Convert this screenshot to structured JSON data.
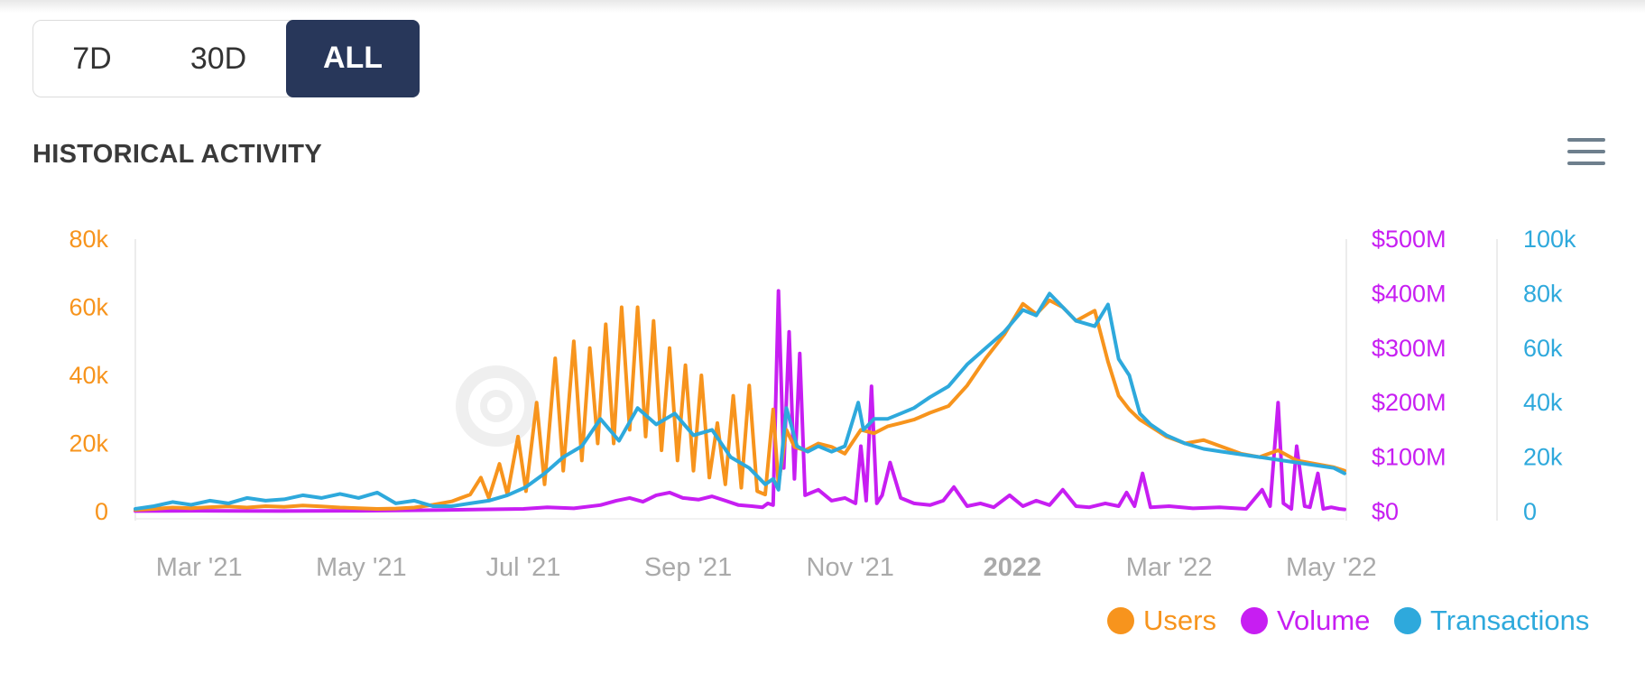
{
  "range_selector": {
    "options": [
      {
        "label": "7D",
        "active": false
      },
      {
        "label": "30D",
        "active": false
      },
      {
        "label": "ALL",
        "active": true
      }
    ]
  },
  "section": {
    "title": "HISTORICAL ACTIVITY",
    "menu_icon": "hamburger-menu-icon"
  },
  "colors": {
    "users": "#f7941d",
    "volume": "#c71ef2",
    "transactions": "#2ea9dc",
    "active_button": "#28375a",
    "axis_label_gray": "#aaaaaa"
  },
  "chart_data": {
    "type": "line",
    "xlabel": "",
    "ylabel": "",
    "x_ticks": [
      {
        "label": "Mar '21",
        "date": "2021-03-01",
        "bold": false
      },
      {
        "label": "May '21",
        "date": "2021-05-01",
        "bold": false
      },
      {
        "label": "Jul '21",
        "date": "2021-07-01",
        "bold": false
      },
      {
        "label": "Sep '21",
        "date": "2021-09-01",
        "bold": false
      },
      {
        "label": "Nov '21",
        "date": "2021-11-01",
        "bold": false
      },
      {
        "label": "2022",
        "date": "2022-01-01",
        "bold": true
      },
      {
        "label": "Mar '22",
        "date": "2022-03-01",
        "bold": false
      },
      {
        "label": "May '22",
        "date": "2022-05-01",
        "bold": false
      }
    ],
    "x_range": [
      "2021-02-05",
      "2022-05-06"
    ],
    "y_axes": [
      {
        "id": "users",
        "position": "left",
        "range": [
          0,
          80000
        ],
        "ticks": [
          "0",
          "20k",
          "40k",
          "60k",
          "80k"
        ],
        "color": "#f7941d"
      },
      {
        "id": "volume",
        "position": "right",
        "range": [
          0,
          500000000
        ],
        "ticks": [
          "$0",
          "$100M",
          "$200M",
          "$300M",
          "$400M",
          "$500M"
        ],
        "color": "#c71ef2"
      },
      {
        "id": "transactions",
        "position": "right",
        "range": [
          0,
          100000
        ],
        "ticks": [
          "0",
          "20k",
          "40k",
          "60k",
          "80k",
          "100k"
        ],
        "color": "#2ea9dc"
      }
    ],
    "grid": false,
    "legend_position": "bottom-right",
    "series": [
      {
        "name": "Users",
        "axis": "users",
        "color": "#f7941d",
        "x": [
          "2021-02-05",
          "2021-02-12",
          "2021-02-19",
          "2021-02-26",
          "2021-03-05",
          "2021-03-12",
          "2021-03-19",
          "2021-03-26",
          "2021-04-02",
          "2021-04-09",
          "2021-04-16",
          "2021-04-23",
          "2021-04-30",
          "2021-05-07",
          "2021-05-14",
          "2021-05-21",
          "2021-05-28",
          "2021-06-04",
          "2021-06-11",
          "2021-06-15",
          "2021-06-18",
          "2021-06-22",
          "2021-06-25",
          "2021-06-29",
          "2021-07-02",
          "2021-07-06",
          "2021-07-09",
          "2021-07-13",
          "2021-07-16",
          "2021-07-20",
          "2021-07-23",
          "2021-07-26",
          "2021-07-29",
          "2021-08-01",
          "2021-08-04",
          "2021-08-07",
          "2021-08-10",
          "2021-08-13",
          "2021-08-16",
          "2021-08-19",
          "2021-08-22",
          "2021-08-25",
          "2021-08-28",
          "2021-08-31",
          "2021-09-03",
          "2021-09-06",
          "2021-09-09",
          "2021-09-12",
          "2021-09-15",
          "2021-09-18",
          "2021-09-21",
          "2021-09-24",
          "2021-09-27",
          "2021-09-30",
          "2021-10-03",
          "2021-10-05",
          "2021-10-08",
          "2021-10-11",
          "2021-10-15",
          "2021-10-20",
          "2021-10-25",
          "2021-10-30",
          "2021-11-05",
          "2021-11-10",
          "2021-11-15",
          "2021-11-20",
          "2021-11-25",
          "2021-12-01",
          "2021-12-08",
          "2021-12-15",
          "2021-12-22",
          "2021-12-29",
          "2022-01-05",
          "2022-01-10",
          "2022-01-15",
          "2022-01-20",
          "2022-01-25",
          "2022-02-01",
          "2022-02-06",
          "2022-02-10",
          "2022-02-14",
          "2022-02-18",
          "2022-02-22",
          "2022-02-28",
          "2022-03-07",
          "2022-03-14",
          "2022-03-21",
          "2022-03-28",
          "2022-04-04",
          "2022-04-11",
          "2022-04-18",
          "2022-04-25",
          "2022-05-02",
          "2022-05-06"
        ],
        "values": [
          500,
          800,
          1200,
          1000,
          1300,
          1500,
          1200,
          1600,
          1400,
          1800,
          1500,
          1200,
          1000,
          800,
          900,
          1200,
          2000,
          3000,
          5000,
          10000,
          4000,
          14000,
          5000,
          22000,
          6000,
          32000,
          8000,
          45000,
          12000,
          50000,
          15000,
          48000,
          20000,
          55000,
          20000,
          60000,
          24000,
          60000,
          22000,
          56000,
          18000,
          48000,
          15000,
          43000,
          12000,
          40000,
          10000,
          26000,
          8000,
          34000,
          7000,
          37000,
          6000,
          5000,
          30000,
          8000,
          24000,
          19000,
          18000,
          20000,
          19000,
          17000,
          24000,
          23000,
          25000,
          26000,
          27000,
          29000,
          31000,
          37000,
          45000,
          52000,
          61000,
          58000,
          62000,
          60000,
          56000,
          59000,
          44000,
          34000,
          30000,
          27000,
          25000,
          22000,
          20000,
          21000,
          19000,
          17000,
          16000,
          18000,
          15000,
          14000,
          13000,
          12000
        ]
      },
      {
        "name": "Volume",
        "axis": "volume",
        "color": "#c71ef2",
        "x": [
          "2021-02-05",
          "2021-03-01",
          "2021-04-01",
          "2021-05-01",
          "2021-06-01",
          "2021-06-15",
          "2021-07-01",
          "2021-07-10",
          "2021-07-20",
          "2021-07-30",
          "2021-08-05",
          "2021-08-10",
          "2021-08-15",
          "2021-08-20",
          "2021-08-25",
          "2021-08-30",
          "2021-09-05",
          "2021-09-10",
          "2021-09-15",
          "2021-09-20",
          "2021-09-25",
          "2021-09-29",
          "2021-10-01",
          "2021-10-03",
          "2021-10-05",
          "2021-10-07",
          "2021-10-09",
          "2021-10-11",
          "2021-10-13",
          "2021-10-15",
          "2021-10-20",
          "2021-10-25",
          "2021-10-30",
          "2021-11-03",
          "2021-11-05",
          "2021-11-07",
          "2021-11-09",
          "2021-11-11",
          "2021-11-13",
          "2021-11-16",
          "2021-11-20",
          "2021-11-25",
          "2021-12-01",
          "2021-12-06",
          "2021-12-10",
          "2021-12-15",
          "2021-12-20",
          "2021-12-25",
          "2021-12-31",
          "2022-01-05",
          "2022-01-10",
          "2022-01-15",
          "2022-01-20",
          "2022-01-25",
          "2022-01-30",
          "2022-02-05",
          "2022-02-10",
          "2022-02-13",
          "2022-02-16",
          "2022-02-19",
          "2022-02-22",
          "2022-03-01",
          "2022-03-10",
          "2022-03-20",
          "2022-03-30",
          "2022-04-05",
          "2022-04-08",
          "2022-04-11",
          "2022-04-13",
          "2022-04-16",
          "2022-04-18",
          "2022-04-21",
          "2022-04-23",
          "2022-04-26",
          "2022-04-28",
          "2022-05-01",
          "2022-05-04",
          "2022-05-06"
        ],
        "values": [
          1000000,
          1500000,
          1000000,
          1500000,
          3000000,
          4000000,
          5000000,
          8000000,
          6000000,
          12000000,
          20000000,
          25000000,
          18000000,
          30000000,
          35000000,
          25000000,
          22000000,
          28000000,
          20000000,
          12000000,
          10000000,
          8000000,
          15000000,
          12000000,
          405000000,
          80000000,
          330000000,
          60000000,
          290000000,
          30000000,
          40000000,
          20000000,
          25000000,
          15000000,
          120000000,
          20000000,
          230000000,
          15000000,
          30000000,
          90000000,
          25000000,
          15000000,
          12000000,
          20000000,
          45000000,
          10000000,
          15000000,
          8000000,
          30000000,
          10000000,
          20000000,
          12000000,
          40000000,
          10000000,
          8000000,
          15000000,
          10000000,
          35000000,
          10000000,
          70000000,
          8000000,
          10000000,
          6000000,
          8000000,
          5000000,
          40000000,
          10000000,
          200000000,
          15000000,
          5000000,
          120000000,
          10000000,
          8000000,
          70000000,
          5000000,
          8000000,
          5000000,
          4000000
        ]
      },
      {
        "name": "Transactions",
        "axis": "transactions",
        "color": "#2ea9dc",
        "x": [
          "2021-02-05",
          "2021-02-12",
          "2021-02-19",
          "2021-02-26",
          "2021-03-05",
          "2021-03-12",
          "2021-03-19",
          "2021-03-26",
          "2021-04-02",
          "2021-04-09",
          "2021-04-16",
          "2021-04-23",
          "2021-04-30",
          "2021-05-07",
          "2021-05-14",
          "2021-05-21",
          "2021-05-28",
          "2021-06-04",
          "2021-06-11",
          "2021-06-18",
          "2021-06-25",
          "2021-07-02",
          "2021-07-09",
          "2021-07-16",
          "2021-07-23",
          "2021-07-30",
          "2021-08-06",
          "2021-08-13",
          "2021-08-20",
          "2021-08-27",
          "2021-09-03",
          "2021-09-10",
          "2021-09-17",
          "2021-09-24",
          "2021-09-30",
          "2021-10-03",
          "2021-10-05",
          "2021-10-08",
          "2021-10-12",
          "2021-10-16",
          "2021-10-20",
          "2021-10-25",
          "2021-10-30",
          "2021-11-04",
          "2021-11-06",
          "2021-11-10",
          "2021-11-15",
          "2021-11-20",
          "2021-11-25",
          "2021-12-01",
          "2021-12-08",
          "2021-12-15",
          "2021-12-22",
          "2021-12-29",
          "2022-01-05",
          "2022-01-10",
          "2022-01-15",
          "2022-01-20",
          "2022-01-25",
          "2022-02-01",
          "2022-02-06",
          "2022-02-10",
          "2022-02-14",
          "2022-02-18",
          "2022-02-22",
          "2022-02-28",
          "2022-03-07",
          "2022-03-14",
          "2022-03-21",
          "2022-03-28",
          "2022-04-04",
          "2022-04-11",
          "2022-04-18",
          "2022-04-25",
          "2022-05-02",
          "2022-05-06"
        ],
        "values": [
          1000,
          2000,
          3500,
          2500,
          4000,
          3000,
          5000,
          4000,
          4500,
          6000,
          5000,
          6500,
          5000,
          7000,
          3000,
          4000,
          2000,
          2000,
          3000,
          4000,
          6000,
          9000,
          14000,
          20000,
          24000,
          34000,
          26000,
          38000,
          32000,
          36000,
          28000,
          30000,
          20000,
          16000,
          10000,
          12000,
          8000,
          38000,
          24000,
          22000,
          24000,
          22000,
          24000,
          40000,
          30000,
          34000,
          34000,
          36000,
          38000,
          42000,
          46000,
          54000,
          60000,
          66000,
          74000,
          72000,
          80000,
          75000,
          70000,
          68000,
          76000,
          56000,
          50000,
          36000,
          32000,
          28000,
          25000,
          23000,
          22000,
          21000,
          20000,
          19000,
          18000,
          17000,
          16000,
          14000
        ]
      }
    ]
  },
  "legend": {
    "items": [
      {
        "label": "Users",
        "color": "#f7941d"
      },
      {
        "label": "Volume",
        "color": "#c71ef2"
      },
      {
        "label": "Transactions",
        "color": "#2ea9dc"
      }
    ]
  }
}
